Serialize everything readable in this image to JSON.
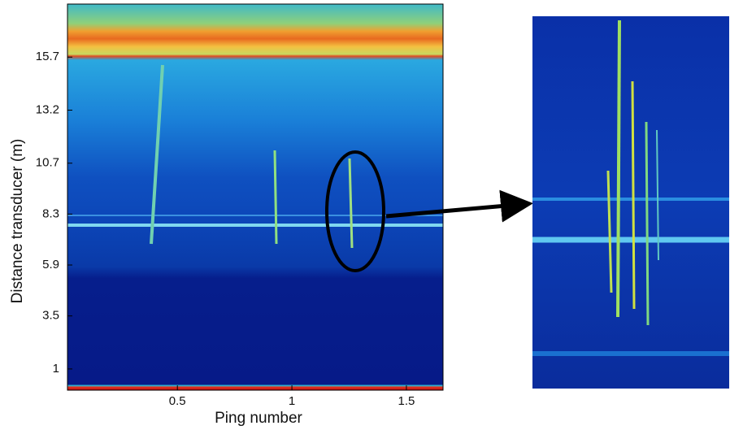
{
  "chart_data": {
    "type": "echogram",
    "xlabel": "Ping number",
    "ylabel": "Distance transducer (m)",
    "xlim": [
      0.02,
      1.66
    ],
    "xticks": [
      0.5,
      1,
      1.5
    ],
    "ylim": [
      0,
      18.2
    ],
    "yticks": [
      1,
      3.5,
      5.9,
      8.3,
      10.7,
      13.2,
      15.7
    ]
  }
}
